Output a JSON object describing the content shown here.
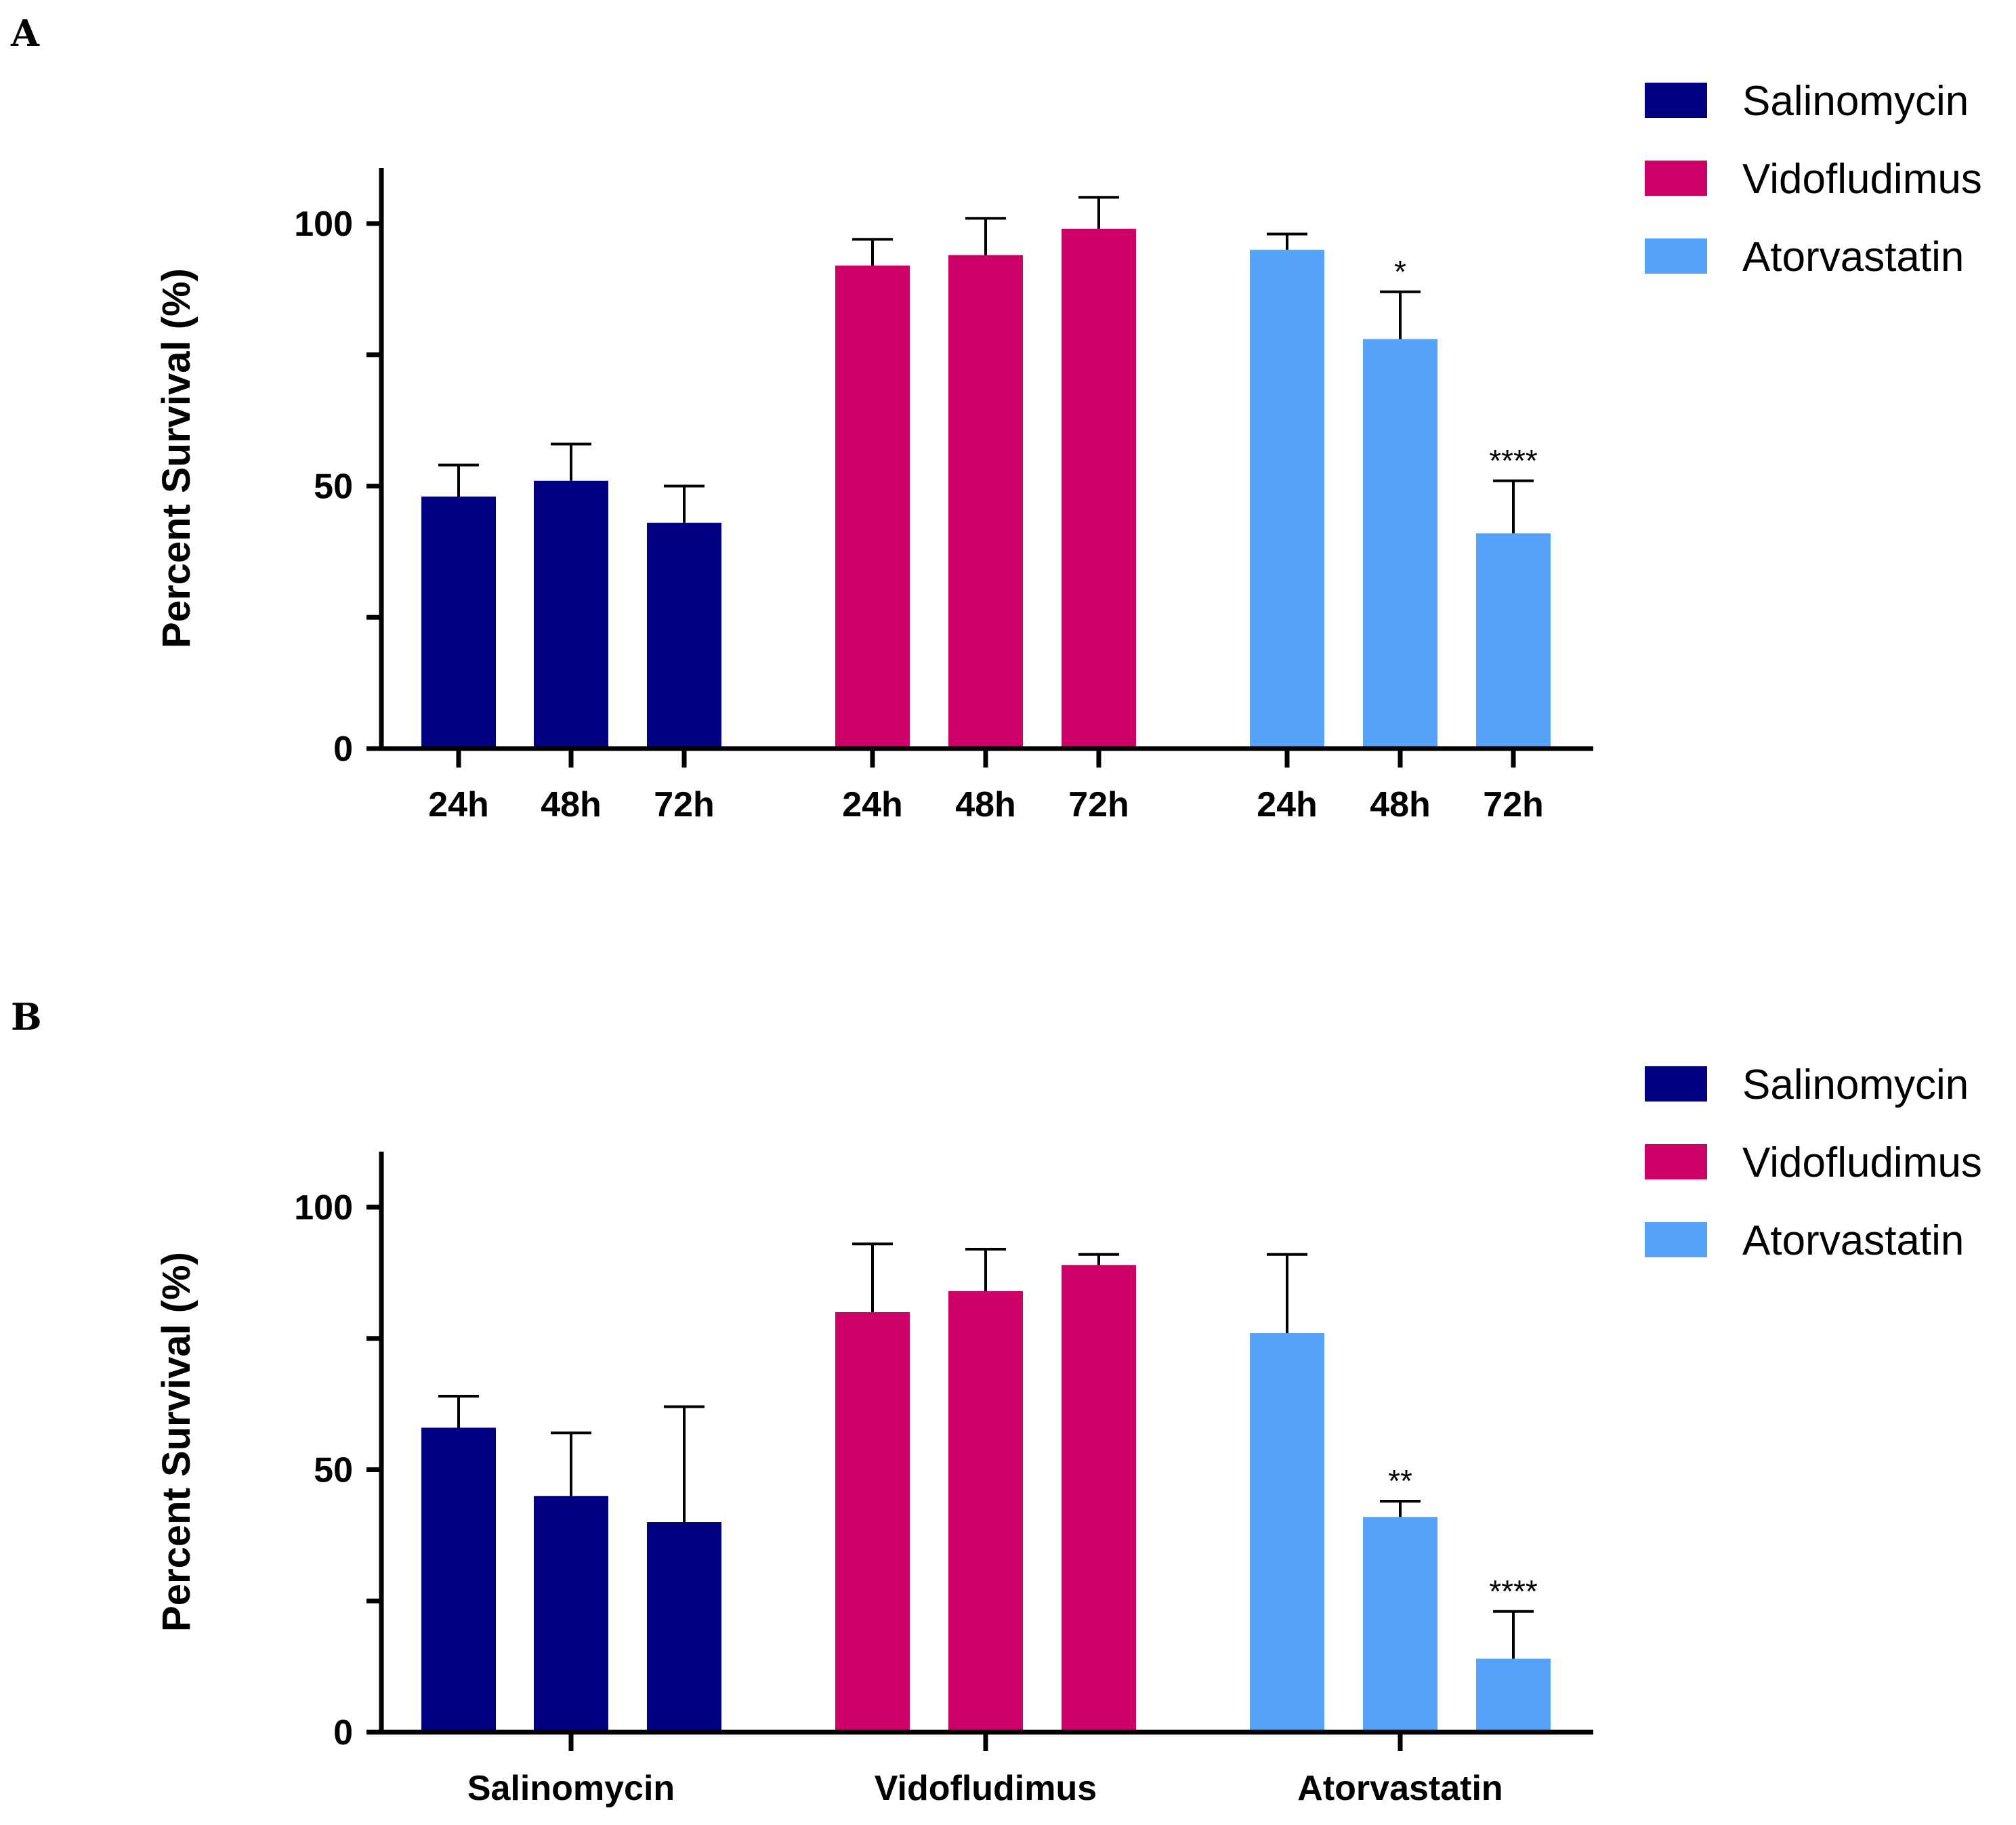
{
  "colors": {
    "Salinomycin": "#000080",
    "Vidofludimus": "#CC0066",
    "Atorvastatin": "#56A3FC"
  },
  "legend": [
    "Salinomycin",
    "Vidofludimus",
    "Atorvastatin"
  ],
  "chart_data": [
    {
      "panel": "A",
      "type": "bar",
      "ylabel": "Percent Survival (%)",
      "ylim": [
        0,
        110
      ],
      "yticks": [
        0,
        50,
        100
      ],
      "minor_yticks": [
        25,
        75
      ],
      "series": [
        {
          "name": "Salinomycin",
          "categories": [
            "24h",
            "48h",
            "72h"
          ],
          "values": [
            48,
            51,
            43
          ],
          "errors": [
            6,
            7,
            7
          ],
          "annotations": [
            "",
            "",
            ""
          ]
        },
        {
          "name": "Vidofludimus",
          "categories": [
            "24h",
            "48h",
            "72h"
          ],
          "values": [
            92,
            94,
            99
          ],
          "errors": [
            5,
            7,
            6
          ],
          "annotations": [
            "",
            "",
            ""
          ]
        },
        {
          "name": "Atorvastatin",
          "categories": [
            "24h",
            "48h",
            "72h"
          ],
          "values": [
            95,
            78,
            41
          ],
          "errors": [
            3,
            9,
            10
          ],
          "annotations": [
            "",
            "*",
            "****"
          ]
        }
      ]
    },
    {
      "panel": "B",
      "type": "bar",
      "ylabel": "Percent Survival (%)",
      "ylim": [
        0,
        110
      ],
      "yticks": [
        0,
        50,
        100
      ],
      "minor_yticks": [
        25,
        75
      ],
      "group_labels": [
        "Salinomycin",
        "Vidofludimus",
        "Atorvastatin"
      ],
      "series": [
        {
          "name": "Salinomycin",
          "values": [
            58,
            45,
            40
          ],
          "errors": [
            6,
            12,
            22
          ],
          "annotations": [
            "",
            "",
            ""
          ]
        },
        {
          "name": "Vidofludimus",
          "values": [
            80,
            84,
            89
          ],
          "errors": [
            13,
            8,
            2
          ],
          "annotations": [
            "",
            "",
            ""
          ]
        },
        {
          "name": "Atorvastatin",
          "values": [
            76,
            41,
            14
          ],
          "errors": [
            15,
            3,
            9
          ],
          "annotations": [
            "",
            "**",
            "****"
          ]
        }
      ]
    }
  ]
}
